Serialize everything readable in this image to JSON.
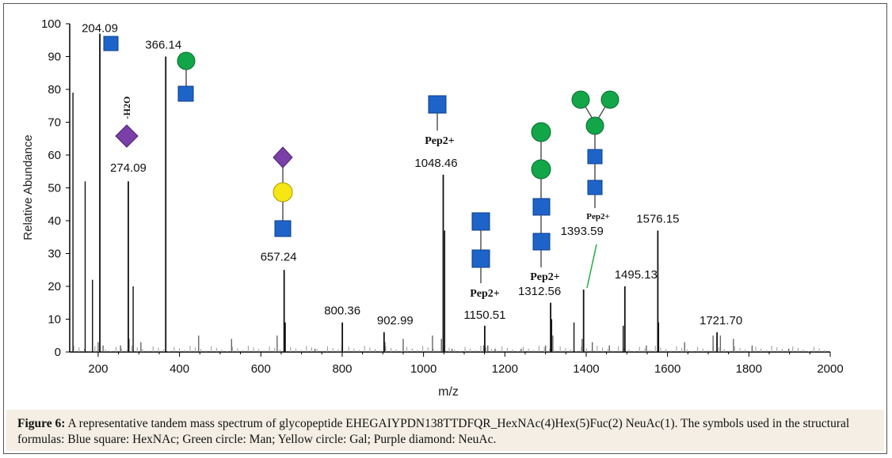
{
  "chart_data": {
    "type": "bar",
    "subtype": "mass spectrum",
    "xlabel": "m/z",
    "ylabel": "Relative Abundance",
    "xlim": [
      130,
      2000
    ],
    "ylim": [
      0,
      100
    ],
    "x_ticks": [
      "200",
      "400",
      "600",
      "800",
      "1000",
      "1200",
      "1400",
      "1600",
      "1800",
      "2000"
    ],
    "y_ticks": [
      "0",
      "10",
      "20",
      "30",
      "40",
      "50",
      "60",
      "70",
      "80",
      "90",
      "100"
    ],
    "labeled_peaks": [
      {
        "mz": 204.09,
        "label": "204.09",
        "intensity": 97
      },
      {
        "mz": 274.09,
        "label": "274.09",
        "intensity": 52
      },
      {
        "mz": 366.14,
        "label": "366.14",
        "intensity": 90
      },
      {
        "mz": 657.24,
        "label": "657.24",
        "intensity": 25
      },
      {
        "mz": 800.36,
        "label": "800.36",
        "intensity": 9
      },
      {
        "mz": 902.99,
        "label": "902.99",
        "intensity": 6
      },
      {
        "mz": 1048.46,
        "label": "1048.46",
        "intensity": 54
      },
      {
        "mz": 1150.51,
        "label": "1150.51",
        "intensity": 8
      },
      {
        "mz": 1312.56,
        "label": "1312.56",
        "intensity": 15
      },
      {
        "mz": 1393.59,
        "label": "1393.59",
        "intensity": 19
      },
      {
        "mz": 1495.13,
        "label": "1495.13",
        "intensity": 20
      },
      {
        "mz": 1576.15,
        "label": "1576.15",
        "intensity": 37
      },
      {
        "mz": 1721.7,
        "label": "1721.70",
        "intensity": 6
      }
    ],
    "other_peaks": [
      [
        138,
        79
      ],
      [
        168,
        52
      ],
      [
        186,
        22
      ],
      [
        200,
        3
      ],
      [
        212,
        2
      ],
      [
        286,
        20
      ],
      [
        276,
        4
      ],
      [
        305,
        3
      ],
      [
        255,
        2
      ],
      [
        447,
        5
      ],
      [
        528,
        4
      ],
      [
        640,
        5
      ],
      [
        660,
        9
      ],
      [
        733,
        1
      ],
      [
        800,
        2
      ],
      [
        905,
        3
      ],
      [
        950,
        4
      ],
      [
        1022,
        5
      ],
      [
        1044,
        4
      ],
      [
        1052,
        37
      ],
      [
        1070,
        1
      ],
      [
        1148,
        2
      ],
      [
        1158,
        2
      ],
      [
        1176,
        1
      ],
      [
        1240,
        1
      ],
      [
        1300,
        2
      ],
      [
        1315,
        10
      ],
      [
        1318,
        5
      ],
      [
        1370,
        9
      ],
      [
        1390,
        4
      ],
      [
        1415,
        3
      ],
      [
        1457,
        2
      ],
      [
        1491,
        8
      ],
      [
        1548,
        2
      ],
      [
        1578,
        9
      ],
      [
        1642,
        3
      ],
      [
        1712,
        5
      ],
      [
        1730,
        5
      ],
      [
        1762,
        4
      ],
      [
        1808,
        2
      ],
      [
        1898,
        1
      ]
    ],
    "annotations": [
      {
        "text": "-H2O",
        "near": "274.09"
      },
      {
        "text": "Pep2+",
        "near": "1048.46"
      },
      {
        "text": "Pep2+",
        "near": "1150.51"
      },
      {
        "text": "Pep2+",
        "near": "1312.56"
      },
      {
        "text": "Pep2+",
        "near": "1393.59"
      }
    ],
    "glycan_symbol_colors": {
      "HexNAc": "#1e64c8",
      "Man": "#12a648",
      "Gal": "#f5e614",
      "NeuAc": "#7b3fa8"
    }
  },
  "caption": {
    "label": "Figure 6:",
    "text": " A representative tandem mass spectrum of glycopeptide EHEGAIYPDN138TTDFQR_HexNAc(4)Hex(5)Fuc(2) NeuAc(1). The symbols used in the structural formulas: Blue square: HexNAc; Green circle: Man; Yellow circle: Gal; Purple diamond: NeuAc."
  }
}
